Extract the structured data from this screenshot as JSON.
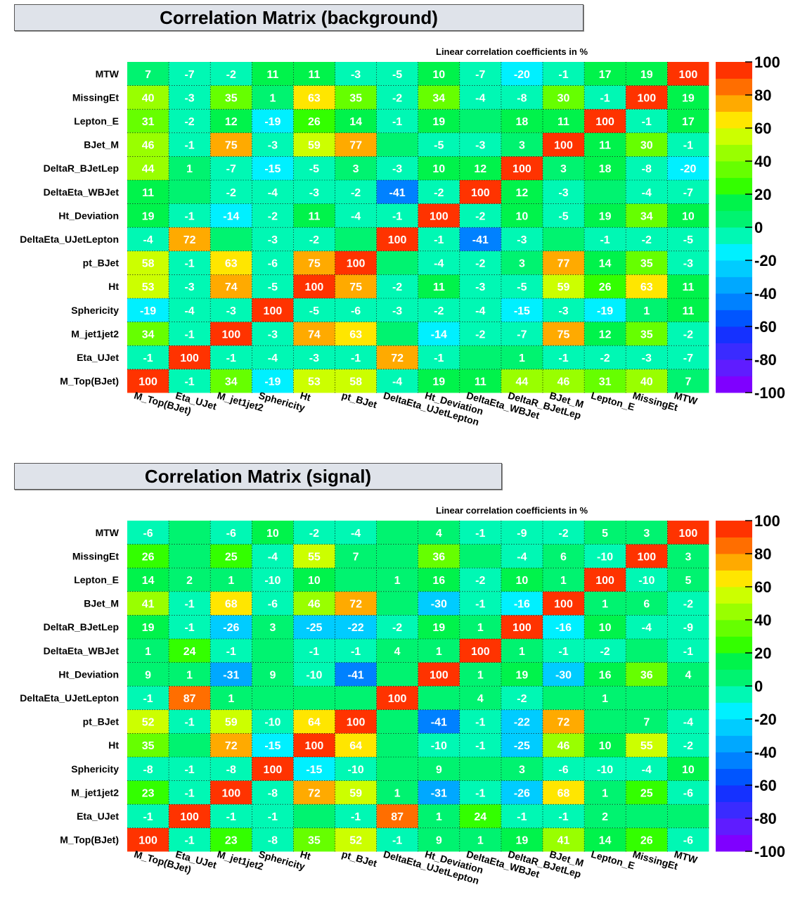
{
  "chart_data": [
    {
      "type": "heatmap",
      "title": "Correlation Matrix (background)",
      "subtitle": "Linear correlation coefficients in %",
      "x_labels": [
        "M_Top(BJet)",
        "Eta_UJet",
        "M_jet1jet2",
        "Sphericity",
        "Ht",
        "pt_BJet",
        "DeltaEta_UJetLepton",
        "Ht_Deviation",
        "DeltaEta_WBJet",
        "DeltaR_BJetLep",
        "BJet_M",
        "Lepton_E",
        "MissingEt",
        "MTW"
      ],
      "y_labels": [
        "M_Top(BJet)",
        "Eta_UJet",
        "M_jet1jet2",
        "Sphericity",
        "Ht",
        "pt_BJet",
        "DeltaEta_UJetLepton",
        "Ht_Deviation",
        "DeltaEta_WBJet",
        "DeltaR_BJetLep",
        "BJet_M",
        "Lepton_E",
        "MissingEt",
        "MTW"
      ],
      "values": [
        [
          100,
          -1,
          34,
          -19,
          53,
          58,
          -4,
          19,
          11,
          44,
          46,
          31,
          40,
          7
        ],
        [
          -1,
          100,
          -1,
          -4,
          -3,
          -1,
          72,
          -1,
          null,
          1,
          -1,
          -2,
          -3,
          -7
        ],
        [
          34,
          -1,
          100,
          -3,
          74,
          63,
          null,
          -14,
          -2,
          -7,
          75,
          12,
          35,
          -2
        ],
        [
          -19,
          -4,
          -3,
          100,
          -5,
          -6,
          -3,
          -2,
          -4,
          -15,
          -3,
          -19,
          1,
          11
        ],
        [
          53,
          -3,
          74,
          -5,
          100,
          75,
          -2,
          11,
          -3,
          -5,
          59,
          26,
          63,
          11
        ],
        [
          58,
          -1,
          63,
          -6,
          75,
          100,
          null,
          -4,
          -2,
          3,
          77,
          14,
          35,
          -3
        ],
        [
          -4,
          72,
          null,
          -3,
          -2,
          null,
          100,
          -1,
          -41,
          -3,
          null,
          -1,
          -2,
          -5
        ],
        [
          19,
          -1,
          -14,
          -2,
          11,
          -4,
          -1,
          100,
          -2,
          10,
          -5,
          19,
          34,
          10
        ],
        [
          11,
          null,
          -2,
          -4,
          -3,
          -2,
          -41,
          -2,
          100,
          12,
          -3,
          null,
          -4,
          -7
        ],
        [
          44,
          1,
          -7,
          -15,
          -5,
          3,
          -3,
          10,
          12,
          100,
          3,
          18,
          -8,
          -20
        ],
        [
          46,
          -1,
          75,
          -3,
          59,
          77,
          null,
          -5,
          -3,
          3,
          100,
          11,
          30,
          -1
        ],
        [
          31,
          -2,
          12,
          -19,
          26,
          14,
          -1,
          19,
          null,
          18,
          11,
          100,
          -1,
          17
        ],
        [
          40,
          -3,
          35,
          1,
          63,
          35,
          -2,
          34,
          -4,
          -8,
          30,
          -1,
          100,
          19
        ],
        [
          7,
          -7,
          -2,
          11,
          11,
          -3,
          -5,
          10,
          -7,
          -20,
          -1,
          17,
          19,
          100
        ]
      ],
      "zlim": [
        -100,
        100
      ],
      "colorbar_ticks": [
        "100",
        "80",
        "60",
        "40",
        "20",
        "0",
        "-20",
        "-40",
        "-60",
        "-80",
        "-100"
      ]
    },
    {
      "type": "heatmap",
      "title": "Correlation Matrix (signal)",
      "subtitle": "Linear correlation coefficients in %",
      "x_labels": [
        "M_Top(BJet)",
        "Eta_UJet",
        "M_jet1jet2",
        "Sphericity",
        "Ht",
        "pt_BJet",
        "DeltaEta_UJetLepton",
        "Ht_Deviation",
        "DeltaEta_WBJet",
        "DeltaR_BJetLep",
        "BJet_M",
        "Lepton_E",
        "MissingEt",
        "MTW"
      ],
      "y_labels": [
        "M_Top(BJet)",
        "Eta_UJet",
        "M_jet1jet2",
        "Sphericity",
        "Ht",
        "pt_BJet",
        "DeltaEta_UJetLepton",
        "Ht_Deviation",
        "DeltaEta_WBJet",
        "DeltaR_BJetLep",
        "BJet_M",
        "Lepton_E",
        "MissingEt",
        "MTW"
      ],
      "values": [
        [
          100,
          -1,
          23,
          -8,
          35,
          52,
          -1,
          9,
          1,
          19,
          41,
          14,
          26,
          -6
        ],
        [
          -1,
          100,
          -1,
          -1,
          null,
          -1,
          87,
          1,
          24,
          -1,
          -1,
          2,
          null,
          null
        ],
        [
          23,
          -1,
          100,
          -8,
          72,
          59,
          1,
          -31,
          -1,
          -26,
          68,
          1,
          25,
          -6
        ],
        [
          -8,
          -1,
          -8,
          100,
          -15,
          -10,
          null,
          9,
          null,
          3,
          -6,
          -10,
          -4,
          10
        ],
        [
          35,
          null,
          72,
          -15,
          100,
          64,
          null,
          -10,
          -1,
          -25,
          46,
          10,
          55,
          -2
        ],
        [
          52,
          -1,
          59,
          -10,
          64,
          100,
          null,
          -41,
          -1,
          -22,
          72,
          null,
          7,
          -4
        ],
        [
          -1,
          87,
          1,
          null,
          null,
          null,
          100,
          null,
          4,
          -2,
          null,
          1,
          null,
          null
        ],
        [
          9,
          1,
          -31,
          9,
          -10,
          -41,
          null,
          100,
          1,
          19,
          -30,
          16,
          36,
          4
        ],
        [
          1,
          24,
          -1,
          null,
          -1,
          -1,
          4,
          1,
          100,
          1,
          -1,
          -2,
          null,
          -1
        ],
        [
          19,
          -1,
          -26,
          3,
          -25,
          -22,
          -2,
          19,
          1,
          100,
          -16,
          10,
          -4,
          -9
        ],
        [
          41,
          -1,
          68,
          -6,
          46,
          72,
          null,
          -30,
          -1,
          -16,
          100,
          1,
          6,
          -2
        ],
        [
          14,
          2,
          1,
          -10,
          10,
          null,
          1,
          16,
          -2,
          10,
          1,
          100,
          -10,
          5
        ],
        [
          26,
          null,
          25,
          -4,
          55,
          7,
          null,
          36,
          null,
          -4,
          6,
          -10,
          100,
          3
        ],
        [
          -6,
          null,
          -6,
          10,
          -2,
          -4,
          null,
          4,
          -1,
          -9,
          -2,
          5,
          3,
          100
        ]
      ],
      "zlim": [
        -100,
        100
      ],
      "colorbar_ticks": [
        "100",
        "80",
        "60",
        "40",
        "20",
        "0",
        "-20",
        "-40",
        "-60",
        "-80",
        "-100"
      ]
    }
  ]
}
